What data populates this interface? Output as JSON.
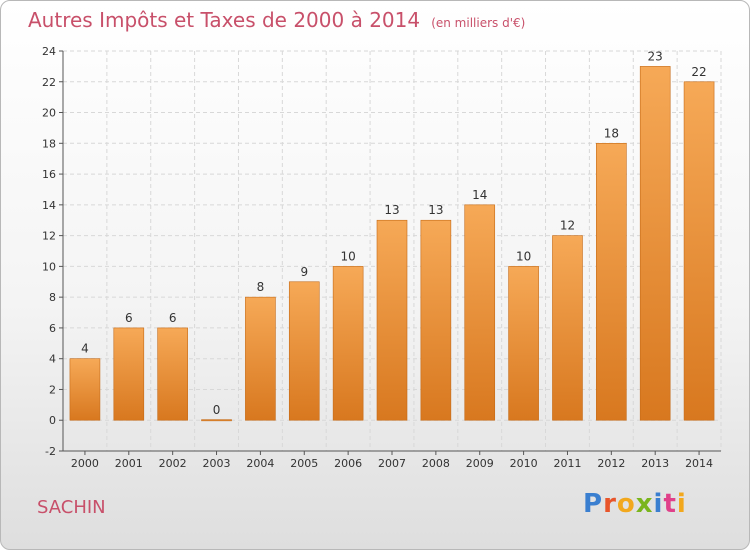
{
  "header": {
    "title": "Autres Impôts et Taxes de 2000 à 2014",
    "unit": "(en milliers d'€)"
  },
  "footer": {
    "commune": "SACHIN",
    "logo": "Proxiti"
  },
  "colors": {
    "title": "#c8506a",
    "bar_light": "#f6a957",
    "bar_dark": "#d8781f",
    "grid": "#d8d8d8",
    "axis": "#555555"
  },
  "chart_data": {
    "type": "bar",
    "title": "Autres Impôts et Taxes de 2000 à 2014",
    "subtitle": "(en milliers d'€)",
    "xlabel": "",
    "ylabel": "",
    "categories": [
      "2000",
      "2001",
      "2002",
      "2003",
      "2004",
      "2005",
      "2006",
      "2007",
      "2008",
      "2009",
      "2010",
      "2011",
      "2012",
      "2013",
      "2014"
    ],
    "values": [
      4,
      6,
      6,
      0,
      8,
      9,
      10,
      13,
      13,
      14,
      10,
      12,
      18,
      23,
      22
    ],
    "ylim": [
      -2,
      24
    ],
    "yticks": [
      -2,
      0,
      2,
      4,
      6,
      8,
      10,
      12,
      14,
      16,
      18,
      20,
      22,
      24
    ],
    "grid": true,
    "legend": "none"
  }
}
